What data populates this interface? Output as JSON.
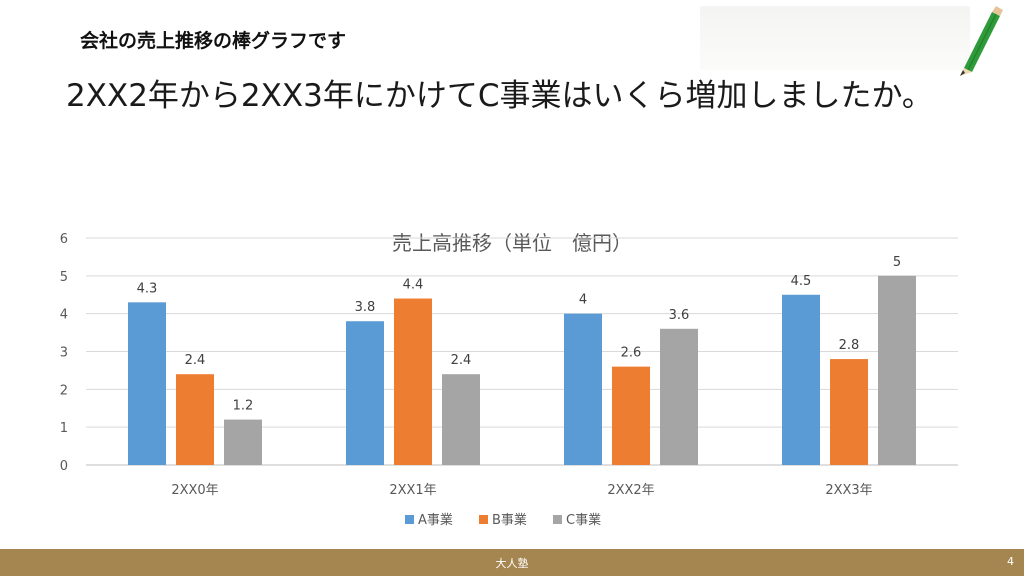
{
  "header": {
    "title": "会社の売上推移の棒グラフです"
  },
  "question": {
    "text": "2XX2年から2XX3年にかけてC事業はいくら増加しましたか。"
  },
  "footer": {
    "brand": "大人塾",
    "page": "4"
  },
  "colors": {
    "a": "#5b9bd5",
    "b": "#ed7d31",
    "c": "#a5a5a5",
    "footer": "#a58650"
  },
  "icons": {
    "decoration": "pencil-icon"
  },
  "chart_data": {
    "type": "bar",
    "title": "売上高推移（単位　億円）",
    "categories": [
      "2XX0年",
      "2XX1年",
      "2XX2年",
      "2XX3年"
    ],
    "series": [
      {
        "name": "A事業",
        "values": [
          4.3,
          3.8,
          4,
          4.5
        ]
      },
      {
        "name": "B事業",
        "values": [
          2.4,
          4.4,
          2.6,
          2.8
        ]
      },
      {
        "name": "C事業",
        "values": [
          1.2,
          2.4,
          3.6,
          5
        ]
      }
    ],
    "ylim": [
      0,
      6
    ],
    "yticks": [
      0,
      1,
      2,
      3,
      4,
      5,
      6
    ],
    "grid": true,
    "legend": "bottom",
    "xlabel": "",
    "ylabel": ""
  }
}
